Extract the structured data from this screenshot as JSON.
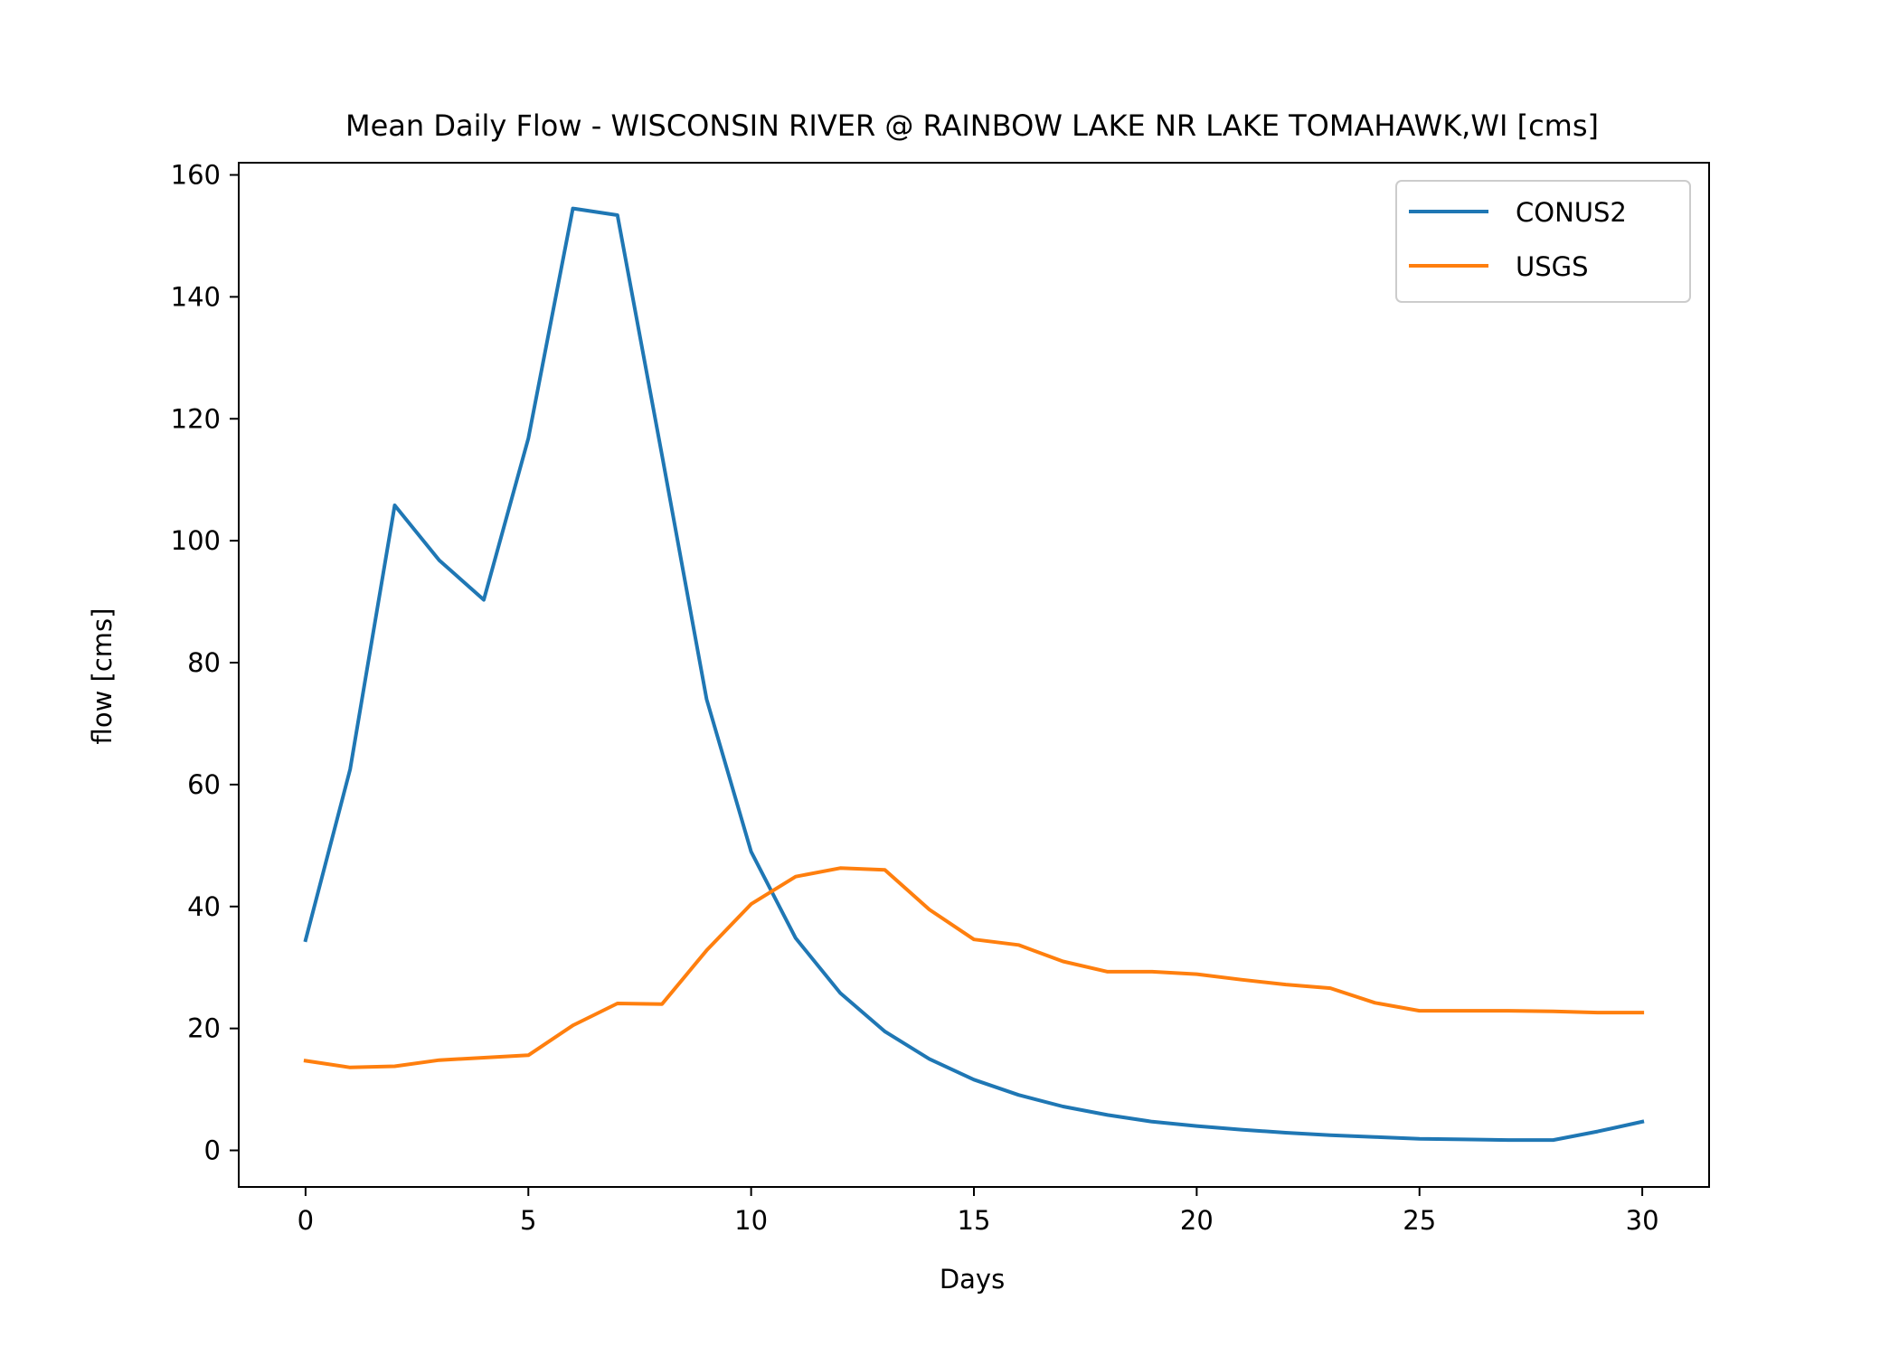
{
  "chart_data": {
    "type": "line",
    "title": "Mean Daily Flow - WISCONSIN RIVER @ RAINBOW LAKE NR LAKE TOMAHAWK,WI [cms]",
    "xlabel": "Days",
    "ylabel": "flow [cms]",
    "xlim": [
      -1.5,
      31.5
    ],
    "ylim": [
      -6,
      162
    ],
    "x_ticks": [
      0,
      5,
      10,
      15,
      20,
      25,
      30
    ],
    "y_ticks": [
      0,
      20,
      40,
      60,
      80,
      100,
      120,
      140,
      160
    ],
    "grid": false,
    "legend_position": "top-right",
    "x": [
      0,
      1,
      2,
      3,
      4,
      5,
      6,
      7,
      8,
      9,
      10,
      11,
      12,
      13,
      14,
      15,
      16,
      17,
      18,
      19,
      20,
      21,
      22,
      23,
      24,
      25,
      26,
      27,
      28,
      29,
      30
    ],
    "series": [
      {
        "name": "CONUS2",
        "color": "#1f77b4",
        "values": [
          34.5,
          62.5,
          105.8,
          96.8,
          90.3,
          116.8,
          154.5,
          153.4,
          114.0,
          74.0,
          49.0,
          34.8,
          25.8,
          19.5,
          15.0,
          11.6,
          9.1,
          7.2,
          5.8,
          4.7,
          4.0,
          3.4,
          2.9,
          2.5,
          2.2,
          1.9,
          1.8,
          1.7,
          1.7,
          3.1,
          4.7
        ]
      },
      {
        "name": "USGS",
        "color": "#ff7f0e",
        "values": [
          14.7,
          13.6,
          13.8,
          14.8,
          15.2,
          15.6,
          20.5,
          24.1,
          24.0,
          32.8,
          40.4,
          44.9,
          46.3,
          46.0,
          39.5,
          34.6,
          33.7,
          31.0,
          29.3,
          29.3,
          28.9,
          28.0,
          27.2,
          26.6,
          24.2,
          22.9,
          22.9,
          22.9,
          22.8,
          22.6,
          22.6
        ]
      }
    ]
  }
}
